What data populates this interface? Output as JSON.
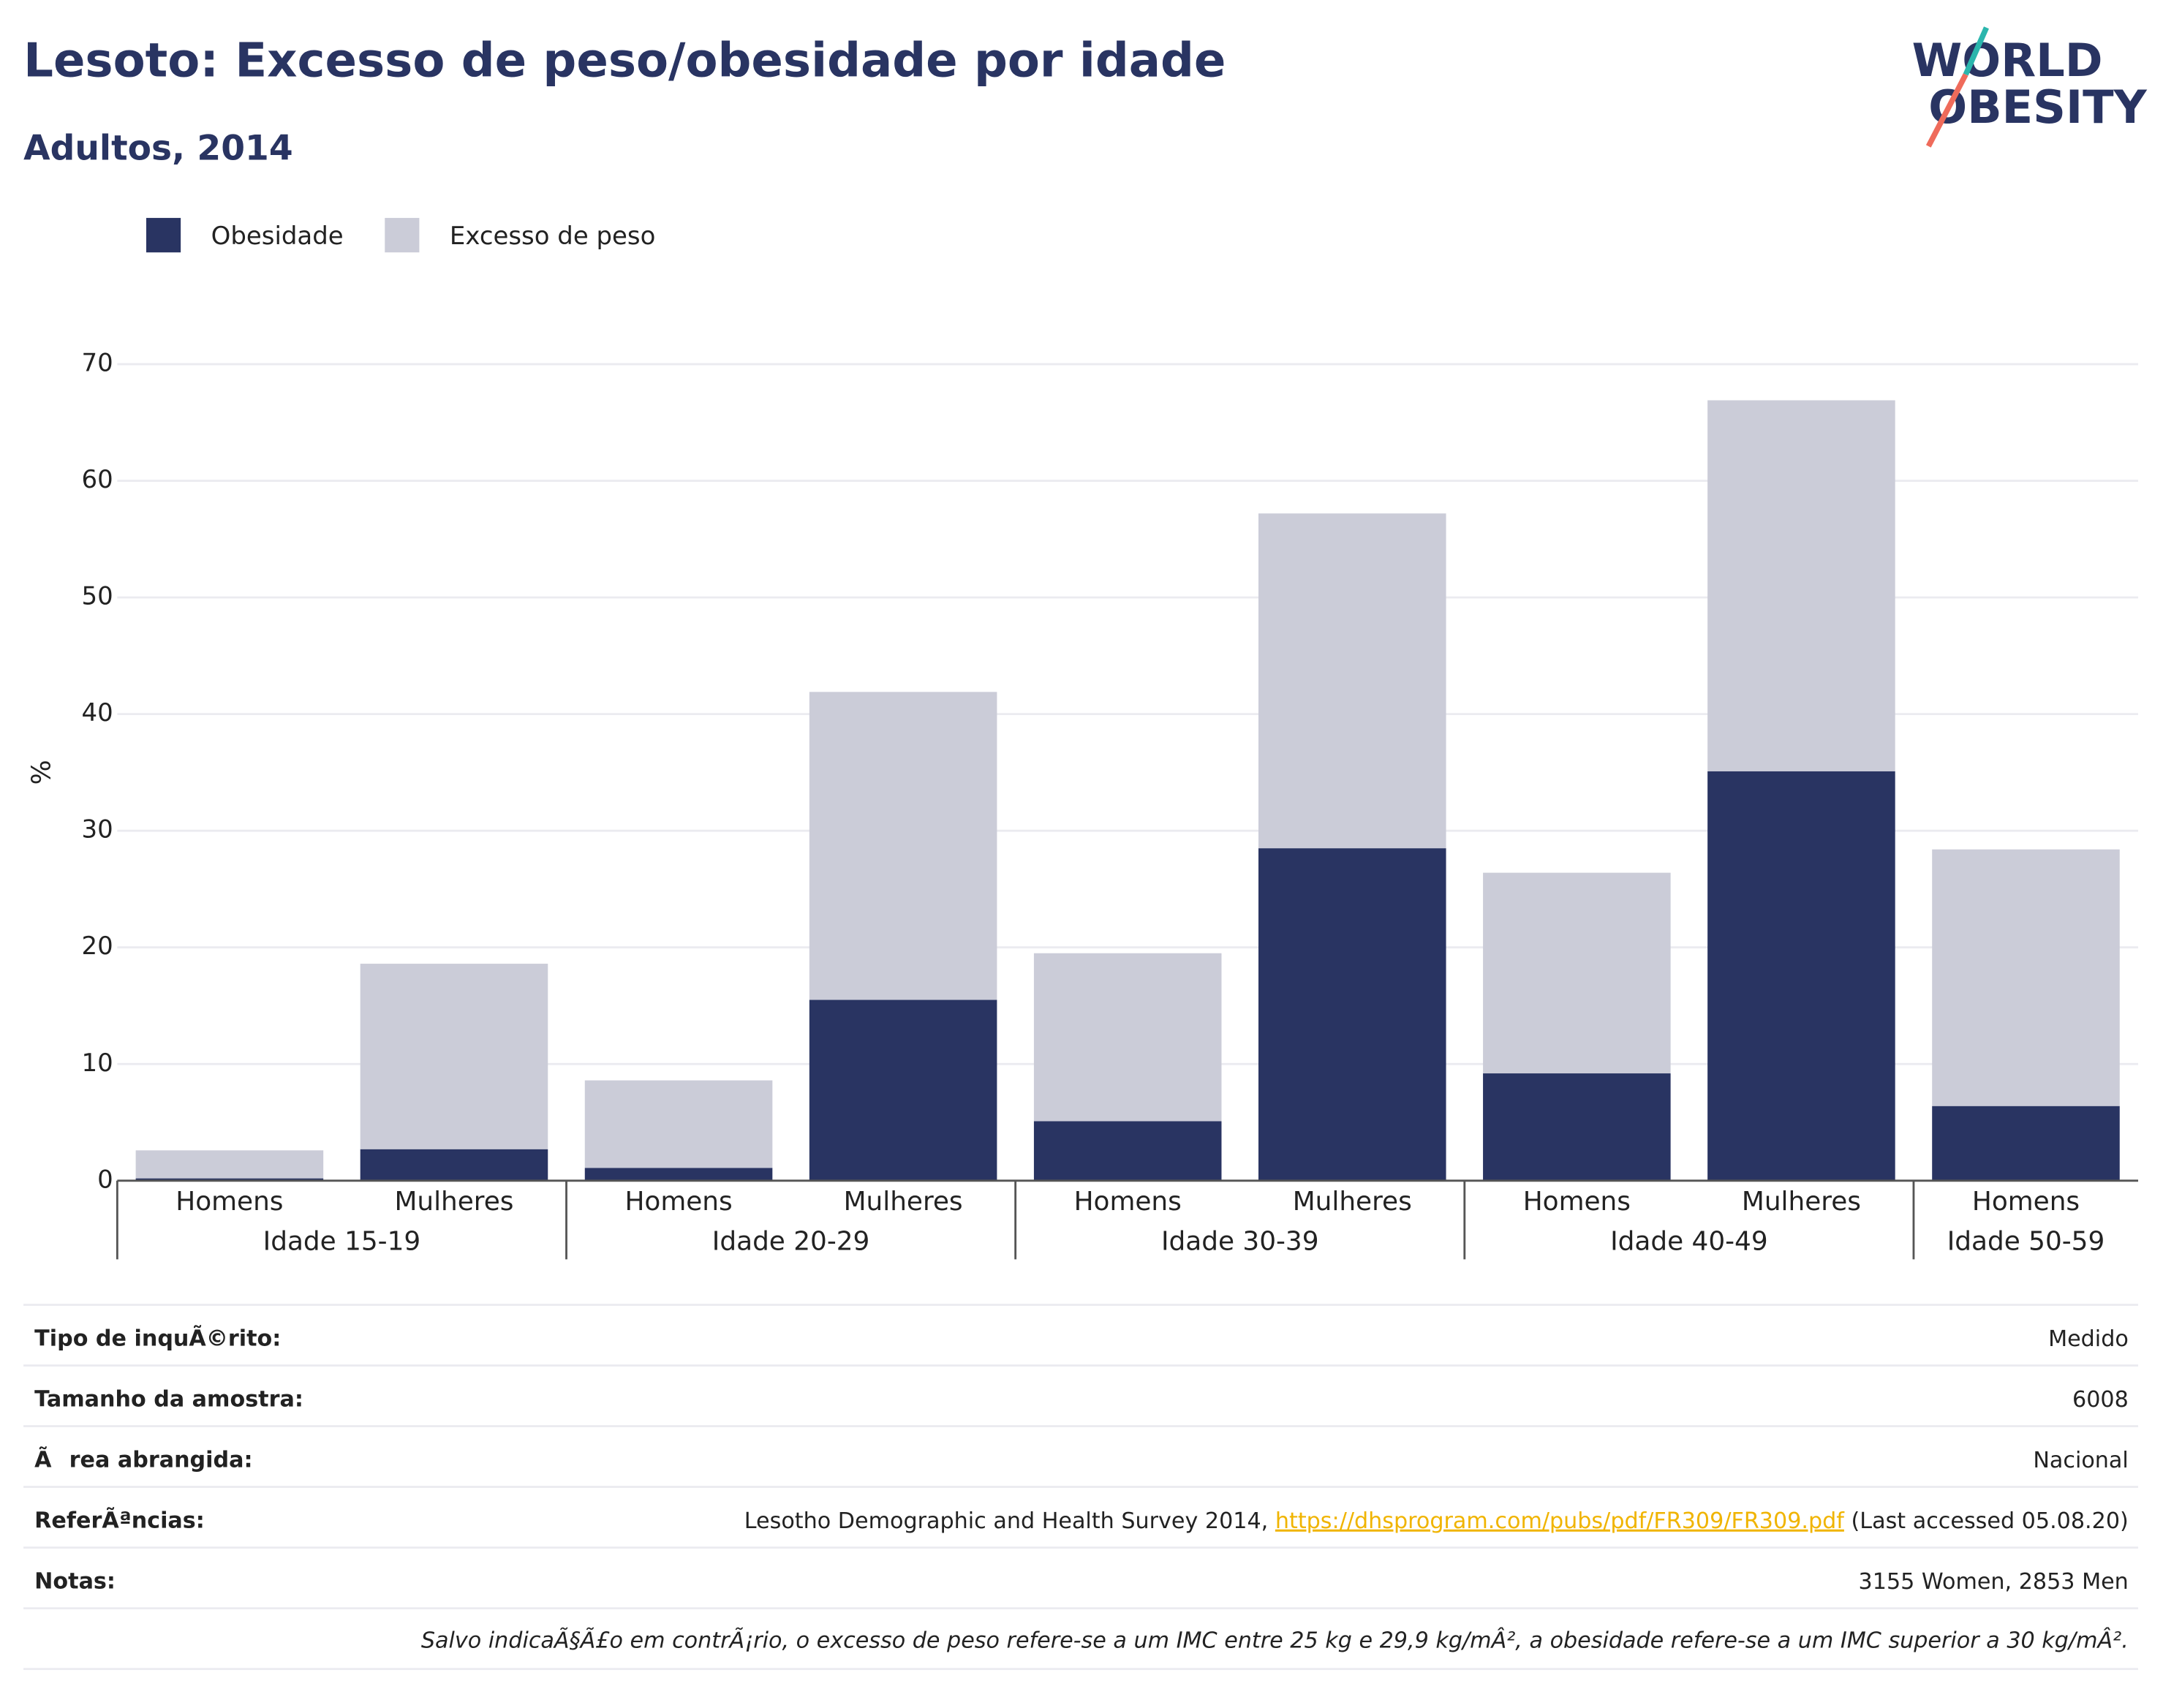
{
  "header": {
    "title": "Lesoto: Excesso de peso/obesidade por idade",
    "subtitle": "Adultos, 2014",
    "logo": [
      "WORLD",
      "OBESITY"
    ]
  },
  "chart_data": {
    "type": "stacked_bar",
    "categories": [
      "Homens",
      "Mulheres",
      "Homens",
      "Mulheres",
      "Homens",
      "Mulheres",
      "Homens",
      "Mulheres",
      "Homens"
    ],
    "groups": [
      {
        "name": "Idade 15-19",
        "size": 2
      },
      {
        "name": "Idade 20-29",
        "size": 2
      },
      {
        "name": "Idade 30-39",
        "size": 2
      },
      {
        "name": "Idade 40-49",
        "size": 2
      },
      {
        "name": "Idade 50-59",
        "size": 1
      }
    ],
    "series": [
      {
        "name": "Obesidade",
        "color": "#293462",
        "values": [
          0.2,
          2.7,
          1.1,
          15.5,
          5.1,
          28.5,
          9.2,
          35.1,
          6.4
        ]
      },
      {
        "name": "Excesso de peso",
        "color": "#cbccd8",
        "values": [
          2.4,
          15.9,
          7.5,
          26.4,
          14.4,
          28.7,
          17.2,
          31.8,
          22.0
        ]
      }
    ],
    "ylabel": "%",
    "ylim": [
      0,
      70
    ],
    "yticks": [
      0,
      10,
      20,
      30,
      40,
      50,
      60,
      70
    ],
    "grid": true,
    "legend": "top-left"
  },
  "table": {
    "rows": [
      [
        "Tipo de inquÃ©rito:",
        "Medido"
      ],
      [
        "Tamanho da amostra:",
        "6008"
      ],
      [
        "Ãrea abrangida:",
        "Nacional"
      ],
      [
        "ReferÃªncias:",
        "Lesotho Demographic and Health Survey 2014, ",
        "https://dhsprogram.com/pubs/pdf/FR309/FR309.pdf",
        " (Last accessed 05.08.20)"
      ],
      [
        "Notas:",
        "3155 Women, 2853 Men"
      ]
    ],
    "footnote": "Salvo indicaÃ§Ã£o em contrÃ¡rio, o excesso de peso refere-se a um IMC entre 25 kg e 29,9 kg/mÂ², a obesidade refere-se a um IMC superior a 30 kg/mÂ²."
  }
}
